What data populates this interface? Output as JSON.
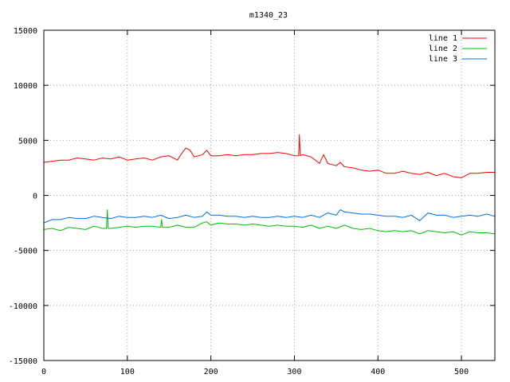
{
  "chart_data": {
    "type": "line",
    "title": "m1340_23",
    "xlabel": "",
    "ylabel": "",
    "xlim": [
      0,
      540
    ],
    "ylim": [
      -15000,
      15000
    ],
    "xticks": [
      0,
      100,
      200,
      300,
      400,
      500
    ],
    "yticks": [
      -15000,
      -10000,
      -5000,
      0,
      5000,
      10000,
      15000
    ],
    "grid": true,
    "legend_position": "top-right",
    "series": [
      {
        "name": "line 1",
        "color": "#ff0000",
        "x": [
          0,
          10,
          20,
          30,
          40,
          50,
          60,
          70,
          80,
          90,
          100,
          110,
          120,
          130,
          140,
          150,
          160,
          165,
          170,
          175,
          180,
          190,
          195,
          200,
          210,
          220,
          230,
          240,
          250,
          260,
          270,
          280,
          290,
          300,
          305,
          306,
          307,
          310,
          320,
          330,
          335,
          340,
          350,
          355,
          360,
          370,
          380,
          390,
          400,
          410,
          420,
          430,
          440,
          450,
          460,
          470,
          480,
          490,
          500,
          510,
          520,
          530,
          540
        ],
        "y": [
          3000,
          3100,
          3200,
          3200,
          3400,
          3300,
          3200,
          3400,
          3300,
          3500,
          3200,
          3300,
          3400,
          3200,
          3500,
          3600,
          3200,
          3800,
          4300,
          4100,
          3500,
          3700,
          4100,
          3600,
          3600,
          3700,
          3600,
          3700,
          3700,
          3800,
          3800,
          3900,
          3800,
          3600,
          3600,
          5500,
          3600,
          3700,
          3500,
          2900,
          3700,
          2900,
          2700,
          3000,
          2600,
          2500,
          2300,
          2200,
          2300,
          2000,
          2000,
          2200,
          2000,
          1900,
          2100,
          1800,
          2000,
          1700,
          1600,
          2000,
          2000,
          2100,
          2100
        ]
      },
      {
        "name": "line 2",
        "color": "#00c000",
        "x": [
          0,
          10,
          20,
          30,
          40,
          50,
          60,
          70,
          75,
          76,
          77,
          80,
          90,
          100,
          110,
          120,
          130,
          140,
          141,
          142,
          150,
          160,
          170,
          180,
          190,
          195,
          200,
          210,
          220,
          230,
          240,
          250,
          260,
          270,
          280,
          290,
          300,
          310,
          320,
          330,
          340,
          350,
          360,
          370,
          380,
          390,
          400,
          410,
          420,
          430,
          440,
          450,
          460,
          470,
          480,
          490,
          500,
          510,
          520,
          530,
          540
        ],
        "y": [
          -3100,
          -3000,
          -3200,
          -2900,
          -3000,
          -3100,
          -2800,
          -3000,
          -3000,
          -1300,
          -3000,
          -3000,
          -2900,
          -2800,
          -2900,
          -2800,
          -2800,
          -2900,
          -2200,
          -2900,
          -2900,
          -2700,
          -2900,
          -2900,
          -2500,
          -2400,
          -2700,
          -2500,
          -2600,
          -2600,
          -2700,
          -2600,
          -2700,
          -2800,
          -2700,
          -2800,
          -2800,
          -2900,
          -2700,
          -3000,
          -2800,
          -3000,
          -2700,
          -3000,
          -3100,
          -3000,
          -3200,
          -3300,
          -3200,
          -3300,
          -3200,
          -3500,
          -3200,
          -3300,
          -3400,
          -3300,
          -3600,
          -3300,
          -3400,
          -3400,
          -3500
        ]
      },
      {
        "name": "line 3",
        "color": "#0070e0",
        "x": [
          0,
          10,
          20,
          30,
          40,
          50,
          60,
          70,
          80,
          90,
          100,
          110,
          120,
          130,
          140,
          150,
          160,
          170,
          180,
          190,
          195,
          200,
          210,
          220,
          230,
          240,
          250,
          260,
          270,
          280,
          290,
          300,
          310,
          320,
          330,
          340,
          350,
          355,
          360,
          370,
          380,
          390,
          400,
          410,
          420,
          430,
          440,
          450,
          460,
          470,
          480,
          490,
          500,
          510,
          520,
          530,
          540
        ],
        "y": [
          -2500,
          -2200,
          -2200,
          -2000,
          -2100,
          -2100,
          -1900,
          -2000,
          -2100,
          -1900,
          -2000,
          -2000,
          -1900,
          -2000,
          -1800,
          -2100,
          -2000,
          -1800,
          -2000,
          -1900,
          -1500,
          -1800,
          -1800,
          -1900,
          -1900,
          -2000,
          -1900,
          -2000,
          -2000,
          -1900,
          -2000,
          -1900,
          -2000,
          -1800,
          -2000,
          -1600,
          -1800,
          -1300,
          -1500,
          -1600,
          -1700,
          -1700,
          -1800,
          -1900,
          -1900,
          -2000,
          -1800,
          -2300,
          -1600,
          -1800,
          -1800,
          -2000,
          -1900,
          -1800,
          -1900,
          -1700,
          -1900
        ]
      }
    ]
  }
}
